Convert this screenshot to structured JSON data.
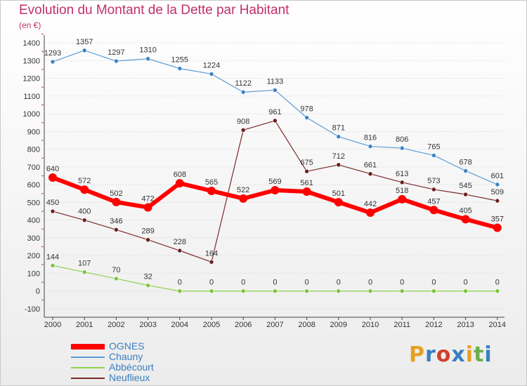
{
  "header": {
    "title": "Evolution du Montant de la Dette par Habitant",
    "subtitle": "(en €)"
  },
  "logo": {
    "text": "Proxiti",
    "colors": [
      "#e8a020",
      "#3a7fc0",
      "#d0402a",
      "#3a7fc0",
      "#e8a020",
      "#6ab04c",
      "#3a7fc0"
    ]
  },
  "chart_data": {
    "type": "line",
    "title": "Evolution du Montant de la Dette par Habitant",
    "subtitle": "(en €)",
    "x": [
      "2000",
      "2001",
      "2002",
      "2003",
      "2004",
      "2005",
      "2006",
      "2007",
      "2008",
      "2009",
      "2010",
      "2011",
      "2012",
      "2013",
      "2014"
    ],
    "yticks": [
      -100,
      0,
      100,
      200,
      300,
      400,
      500,
      600,
      700,
      800,
      900,
      1000,
      1100,
      1200,
      1300,
      1400
    ],
    "ylim": [
      -100,
      1400
    ],
    "grid": "horizontal",
    "legend_position": "bottom-left",
    "series": [
      {
        "name": "OGNES",
        "color": "#ff0000",
        "values": [
          640,
          572,
          502,
          472,
          608,
          565,
          522,
          569,
          561,
          501,
          442,
          518,
          457,
          405,
          357
        ]
      },
      {
        "name": "Chauny",
        "color": "#5b9bd5",
        "values": [
          1293,
          1357,
          1297,
          1310,
          1255,
          1224,
          1122,
          1133,
          978,
          871,
          816,
          806,
          765,
          678,
          601
        ]
      },
      {
        "name": "Abbécourt",
        "color": "#8fd14f",
        "values": [
          144,
          107,
          70,
          32,
          0,
          0,
          0,
          0,
          0,
          0,
          0,
          0,
          0,
          0,
          0
        ]
      },
      {
        "name": "Neuflieux",
        "color": "#7b2a2a",
        "values": [
          450,
          400,
          346,
          289,
          228,
          164,
          908,
          961,
          675,
          712,
          661,
          613,
          573,
          545,
          509
        ]
      }
    ]
  }
}
